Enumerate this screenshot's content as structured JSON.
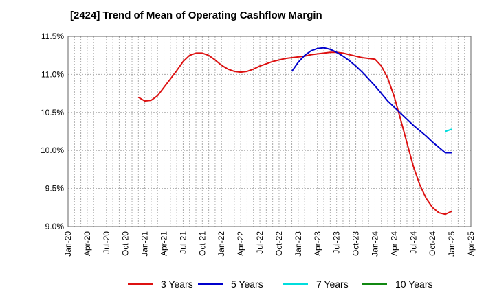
{
  "chart_data": {
    "type": "line",
    "title": "[2424]  Trend of Mean of Operating Cashflow Margin",
    "xlabel": "",
    "ylabel": "",
    "x_ticks": [
      "Jan-20",
      "Apr-20",
      "Jul-20",
      "Oct-20",
      "Jan-21",
      "Apr-21",
      "Jul-21",
      "Oct-21",
      "Jan-22",
      "Apr-22",
      "Jul-22",
      "Oct-22",
      "Jan-23",
      "Apr-23",
      "Jul-23",
      "Oct-23",
      "Jan-24",
      "Apr-24",
      "Jul-24",
      "Oct-24",
      "Jan-25",
      "Apr-25"
    ],
    "y_ticks": [
      "9.0%",
      "9.5%",
      "10.0%",
      "10.5%",
      "11.0%",
      "11.5%"
    ],
    "ylim": [
      9.0,
      11.5
    ],
    "xlim": [
      "Jan-20",
      "Apr-25"
    ],
    "grid": true,
    "legend_position": "bottom",
    "series": [
      {
        "name": "3 Years",
        "color": "#dd1111",
        "x": [
          "Dec-20",
          "Jan-21",
          "Feb-21",
          "Mar-21",
          "Apr-21",
          "May-21",
          "Jun-21",
          "Jul-21",
          "Aug-21",
          "Sep-21",
          "Oct-21",
          "Nov-21",
          "Dec-21",
          "Jan-22",
          "Feb-22",
          "Mar-22",
          "Apr-22",
          "May-22",
          "Jun-22",
          "Jul-22",
          "Aug-22",
          "Sep-22",
          "Oct-22",
          "Nov-22",
          "Dec-22",
          "Jan-23",
          "Feb-23",
          "Mar-23",
          "Apr-23",
          "May-23",
          "Jun-23",
          "Jul-23",
          "Aug-23",
          "Sep-23",
          "Oct-23",
          "Nov-23",
          "Dec-23",
          "Jan-24",
          "Feb-24",
          "Mar-24",
          "Apr-24",
          "May-24",
          "Jun-24",
          "Jul-24",
          "Aug-24",
          "Sep-24",
          "Oct-24",
          "Nov-24",
          "Dec-24",
          "Jan-25"
        ],
        "values": [
          10.7,
          10.65,
          10.66,
          10.72,
          10.83,
          10.94,
          11.05,
          11.17,
          11.25,
          11.28,
          11.28,
          11.25,
          11.19,
          11.12,
          11.07,
          11.04,
          11.03,
          11.04,
          11.07,
          11.11,
          11.14,
          11.17,
          11.19,
          11.21,
          11.22,
          11.23,
          11.24,
          11.26,
          11.27,
          11.28,
          11.29,
          11.29,
          11.28,
          11.26,
          11.24,
          11.22,
          11.21,
          11.2,
          11.11,
          10.95,
          10.71,
          10.41,
          10.1,
          9.79,
          9.55,
          9.37,
          9.25,
          9.18,
          9.16,
          9.2
        ]
      },
      {
        "name": "5 Years",
        "color": "#0000cc",
        "x": [
          "Dec-22",
          "Jan-23",
          "Feb-23",
          "Mar-23",
          "Apr-23",
          "May-23",
          "Jun-23",
          "Jul-23",
          "Aug-23",
          "Sep-23",
          "Oct-23",
          "Nov-23",
          "Dec-23",
          "Jan-24",
          "Feb-24",
          "Mar-24",
          "Apr-24",
          "May-24",
          "Jun-24",
          "Jul-24",
          "Aug-24",
          "Sep-24",
          "Oct-24",
          "Nov-24",
          "Dec-24",
          "Jan-25"
        ],
        "values": [
          11.04,
          11.16,
          11.25,
          11.31,
          11.34,
          11.35,
          11.33,
          11.29,
          11.24,
          11.18,
          11.11,
          11.03,
          10.94,
          10.85,
          10.75,
          10.65,
          10.57,
          10.49,
          10.41,
          10.33,
          10.26,
          10.19,
          10.11,
          10.04,
          9.97,
          9.97
        ]
      },
      {
        "name": "7 Years",
        "color": "#00dddd",
        "x": [
          "Dec-24",
          "Jan-25"
        ],
        "values": [
          10.25,
          10.28
        ]
      },
      {
        "name": "10 Years",
        "color": "#118811",
        "x": [],
        "values": []
      }
    ]
  }
}
